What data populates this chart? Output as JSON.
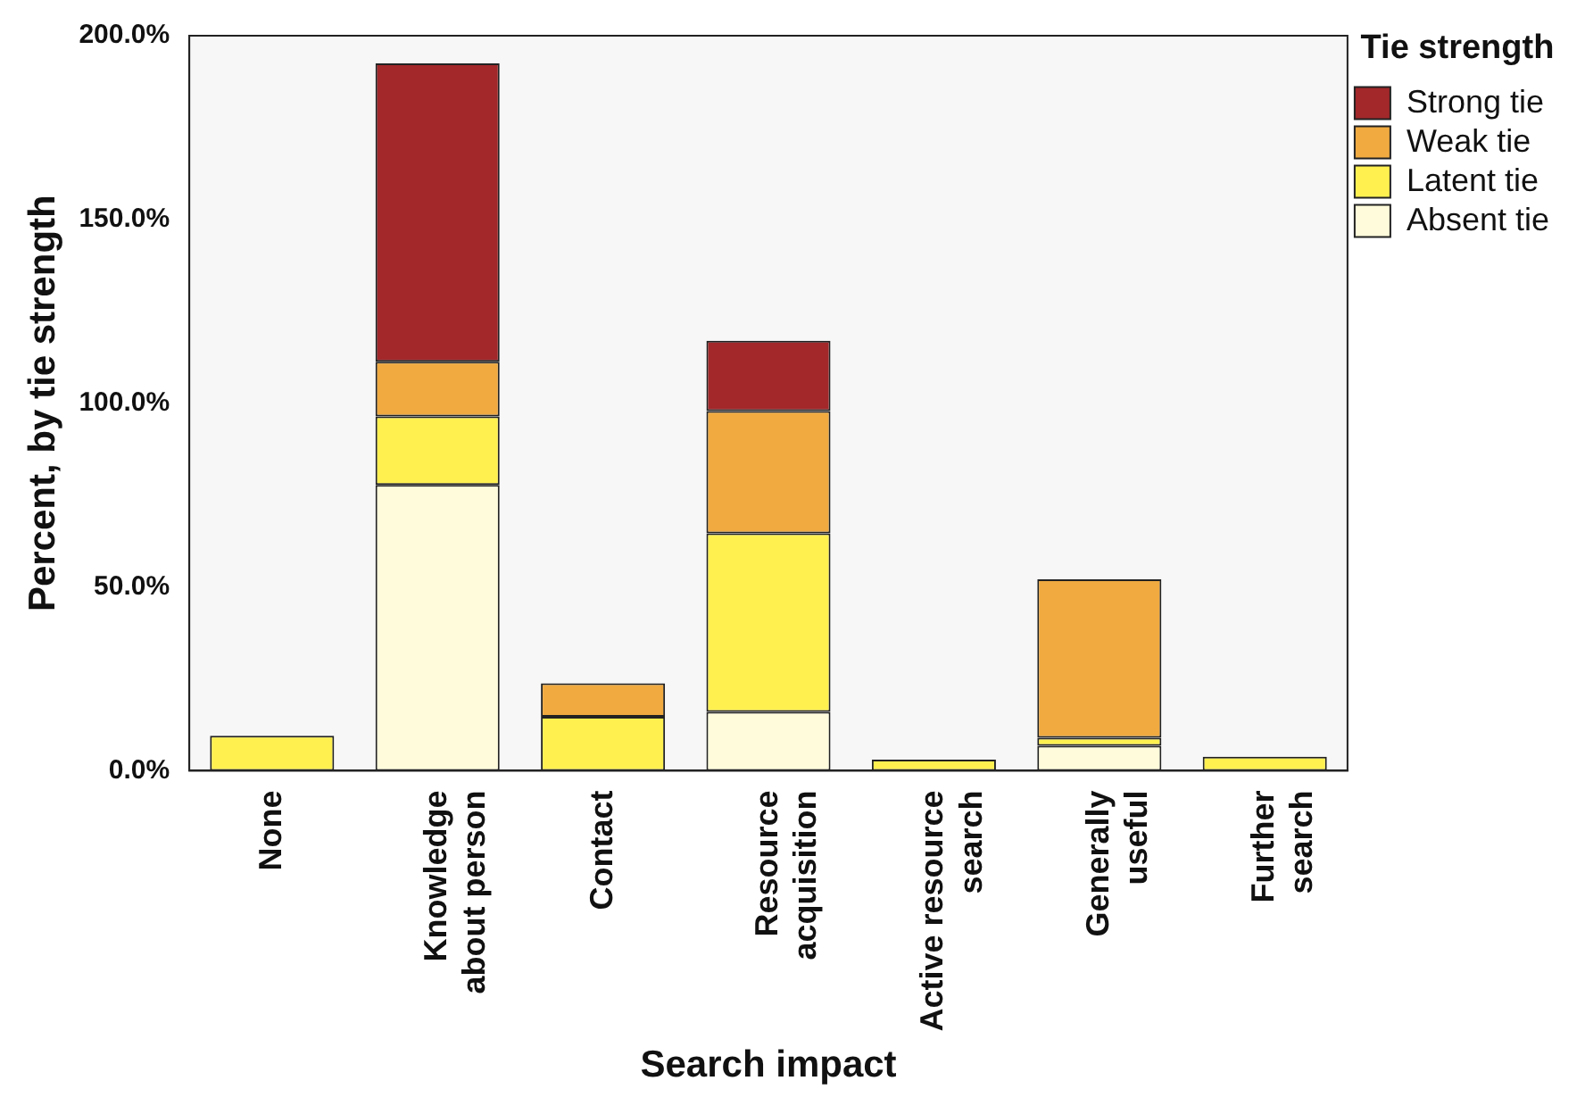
{
  "chart_data": {
    "type": "bar",
    "stacked": true,
    "xlabel": "Search impact",
    "ylabel": "Percent, by tie strength",
    "legend_title": "Tie strength",
    "legend": "top right",
    "grid": false,
    "categories": [
      "None",
      "Knowledge\nabout person",
      "Contact",
      "Resource\nacquisition",
      "Active resource\nsearch",
      "Generally\nuseful",
      "Further\nsearch"
    ],
    "ylim": [
      0,
      200
    ],
    "yticks": [
      {
        "value": 0,
        "label": "0.0%"
      },
      {
        "value": 50,
        "label": "50.0%"
      },
      {
        "value": 100,
        "label": "100.0%"
      },
      {
        "value": 150,
        "label": "150.0%"
      },
      {
        "value": 200,
        "label": "200.0%"
      }
    ],
    "series": [
      {
        "name": "Absent tie",
        "color": "#fffbdb",
        "values": [
          null,
          77.8,
          null,
          16,
          null,
          6.8,
          null
        ]
      },
      {
        "name": "Latent tie",
        "color": "#fff050",
        "values": [
          9.5,
          18.6,
          14.7,
          48.6,
          3,
          2.2,
          3.8
        ]
      },
      {
        "name": "Weak tie",
        "color": "#f0aa40",
        "values": [
          null,
          14.9,
          9.1,
          33.3,
          null,
          43.1,
          null
        ]
      },
      {
        "name": "Strong tie",
        "color": "#a2282a",
        "values": [
          null,
          81.2,
          null,
          19.1,
          null,
          null,
          null
        ]
      }
    ]
  }
}
